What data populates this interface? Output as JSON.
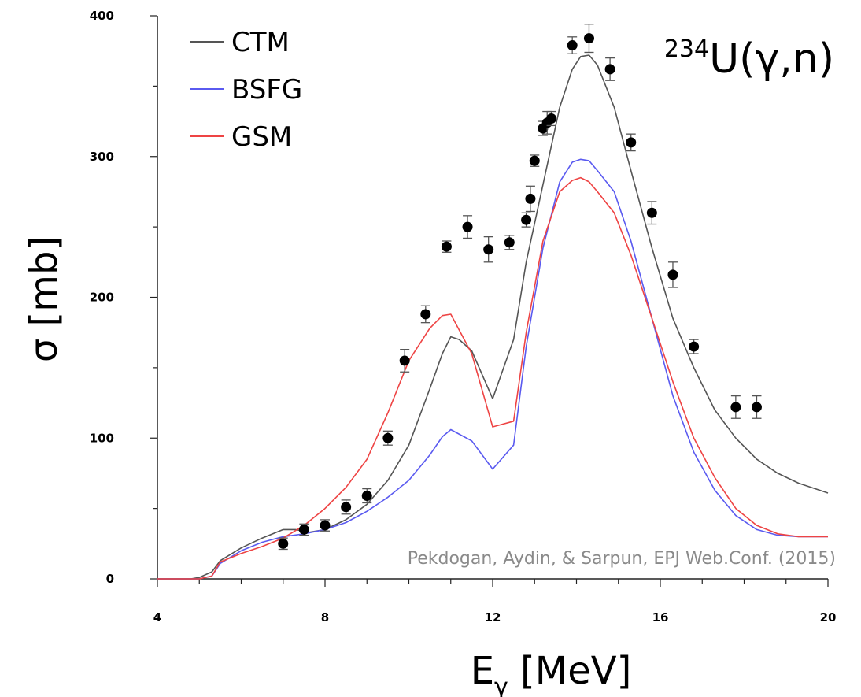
{
  "chart_data": {
    "type": "line",
    "title": "234U(γ,n)",
    "title_parts": {
      "mass": "234",
      "rest": "U(γ,n)"
    },
    "xlabel": "Eγ [MeV]",
    "xlabel_parts": {
      "main": "E",
      "sub": "γ",
      "unit": " [MeV]"
    },
    "ylabel": "σ [mb]",
    "xlim": [
      4,
      20
    ],
    "ylim": [
      0,
      400
    ],
    "xticks": [
      4,
      8,
      12,
      16,
      20
    ],
    "yticks": [
      0,
      100,
      200,
      300,
      400
    ],
    "grid": false,
    "legend_position": "top-left",
    "credit": "Pekdogan, Aydin, & Sarpun, EPJ Web.Conf. (2015)",
    "series": [
      {
        "name": "CTM",
        "color": "#555555",
        "x": [
          4,
          4.8,
          5.0,
          5.3,
          5.5,
          6.0,
          6.5,
          7.0,
          7.3,
          7.6,
          8.0,
          8.5,
          9.0,
          9.5,
          10.0,
          10.5,
          10.8,
          11.0,
          11.2,
          11.5,
          12.0,
          12.5,
          12.8,
          13.2,
          13.6,
          13.9,
          14.1,
          14.3,
          14.5,
          14.9,
          15.3,
          15.8,
          16.3,
          16.8,
          17.3,
          17.8,
          18.3,
          18.8,
          19.3,
          19.8,
          20
        ],
        "y": [
          0,
          0,
          1,
          5,
          13,
          22,
          29,
          35,
          35,
          33,
          35,
          42,
          53,
          70,
          95,
          135,
          160,
          172,
          170,
          162,
          128,
          170,
          225,
          280,
          335,
          362,
          371,
          372,
          365,
          335,
          290,
          235,
          185,
          150,
          120,
          100,
          85,
          75,
          68,
          63,
          61
        ]
      },
      {
        "name": "BSFG",
        "color": "#5a5af0",
        "x": [
          4,
          4.8,
          5.0,
          5.3,
          5.5,
          6.0,
          6.5,
          7.0,
          7.5,
          8.0,
          8.5,
          9.0,
          9.5,
          10.0,
          10.5,
          10.8,
          11.0,
          11.5,
          12.0,
          12.5,
          12.8,
          13.2,
          13.6,
          13.9,
          14.1,
          14.3,
          14.5,
          14.9,
          15.3,
          15.8,
          16.3,
          16.8,
          17.3,
          17.8,
          18.3,
          18.8,
          19.3,
          19.8,
          20
        ],
        "y": [
          0,
          0,
          0,
          2,
          11,
          20,
          26,
          30,
          32,
          35,
          40,
          48,
          58,
          70,
          88,
          101,
          106,
          98,
          78,
          95,
          165,
          235,
          282,
          296,
          298,
          297,
          290,
          275,
          240,
          185,
          130,
          90,
          63,
          45,
          35,
          31,
          30,
          30,
          30
        ]
      },
      {
        "name": "GSM",
        "color": "#ee4444",
        "x": [
          4,
          4.8,
          5.0,
          5.3,
          5.5,
          6.0,
          6.5,
          7.0,
          7.5,
          8.0,
          8.5,
          9.0,
          9.5,
          10.0,
          10.5,
          10.8,
          11.0,
          11.5,
          12.0,
          12.5,
          12.8,
          13.2,
          13.6,
          13.9,
          14.1,
          14.3,
          14.5,
          14.9,
          15.3,
          15.8,
          16.3,
          16.8,
          17.3,
          17.8,
          18.3,
          18.8,
          19.3,
          19.8,
          20
        ],
        "y": [
          0,
          0,
          0,
          2,
          12,
          18,
          23,
          29,
          38,
          50,
          65,
          85,
          118,
          155,
          178,
          187,
          188,
          160,
          108,
          112,
          175,
          240,
          275,
          283,
          285,
          282,
          275,
          260,
          230,
          185,
          140,
          100,
          72,
          50,
          38,
          32,
          30,
          30,
          30
        ]
      }
    ],
    "points": {
      "color": "#000000",
      "data": [
        {
          "x": 7.0,
          "y": 25,
          "err": 4
        },
        {
          "x": 7.5,
          "y": 35,
          "err": 4
        },
        {
          "x": 8.0,
          "y": 38,
          "err": 4
        },
        {
          "x": 8.5,
          "y": 51,
          "err": 5
        },
        {
          "x": 9.0,
          "y": 59,
          "err": 5
        },
        {
          "x": 9.5,
          "y": 100,
          "err": 5
        },
        {
          "x": 9.9,
          "y": 155,
          "err": 8
        },
        {
          "x": 10.4,
          "y": 188,
          "err": 6
        },
        {
          "x": 10.9,
          "y": 236,
          "err": 4
        },
        {
          "x": 11.4,
          "y": 250,
          "err": 8
        },
        {
          "x": 11.9,
          "y": 234,
          "err": 9
        },
        {
          "x": 12.4,
          "y": 239,
          "err": 5
        },
        {
          "x": 12.8,
          "y": 255,
          "err": 5
        },
        {
          "x": 12.9,
          "y": 270,
          "err": 9
        },
        {
          "x": 13.0,
          "y": 297,
          "err": 4
        },
        {
          "x": 13.2,
          "y": 320,
          "err": 5
        },
        {
          "x": 13.3,
          "y": 324,
          "err": 8
        },
        {
          "x": 13.4,
          "y": 327,
          "err": 5
        },
        {
          "x": 13.9,
          "y": 379,
          "err": 6
        },
        {
          "x": 14.3,
          "y": 384,
          "err": 10
        },
        {
          "x": 14.8,
          "y": 362,
          "err": 8
        },
        {
          "x": 15.3,
          "y": 310,
          "err": 6
        },
        {
          "x": 15.8,
          "y": 260,
          "err": 8
        },
        {
          "x": 16.3,
          "y": 216,
          "err": 9
        },
        {
          "x": 16.8,
          "y": 165,
          "err": 5
        },
        {
          "x": 17.8,
          "y": 122,
          "err": 8
        },
        {
          "x": 18.3,
          "y": 122,
          "err": 8
        }
      ]
    }
  }
}
